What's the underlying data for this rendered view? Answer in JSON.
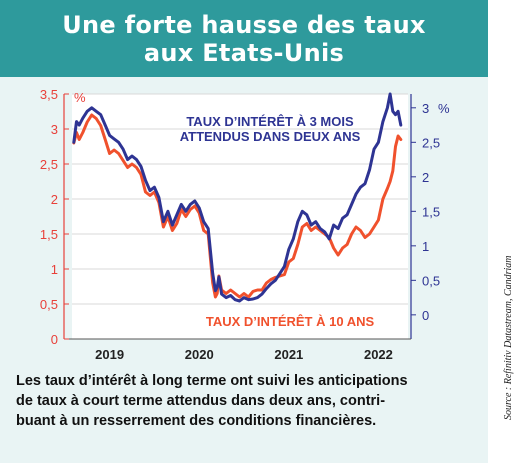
{
  "header": {
    "title_line1": "Une forte hausse des taux",
    "title_line2": "aux Etats-Unis"
  },
  "caption": {
    "line1": "Les taux d’intérêt à long terme ont suivi les anticipations",
    "line2": "de taux à court terme attendus dans deux ans, contri-",
    "line3": "buant à un resserrement des conditions financières."
  },
  "source": "Source : Refinitiv Datastream, Candriam",
  "colors": {
    "frame_bg": "#e9f4f4",
    "title_bg": "#2e9a9c",
    "red_series": "#f0512d",
    "blue_series": "#2e3493",
    "left_axis": "#e8403a",
    "right_axis": "#2e3493"
  },
  "chart_data": {
    "type": "line",
    "left_axis": {
      "unit": "%",
      "ticks": [
        "0",
        "0,5",
        "1",
        "1,5",
        "2",
        "2,5",
        "3",
        "3,5"
      ],
      "ylim": [
        0,
        3.5
      ]
    },
    "right_axis": {
      "unit": "%",
      "ticks": [
        "0",
        "0,5",
        "1",
        "1,5",
        "2",
        "2,5",
        "3"
      ],
      "ylim": [
        -0.35,
        3.2
      ]
    },
    "x_ticks": [
      "2019",
      "2020",
      "2021",
      "2022"
    ],
    "xlim": [
      2018.58,
      2022.33
    ],
    "grid": "horizontal",
    "series": [
      {
        "name": "TAUX D’INTÉRÊT À 10 ANS",
        "axis": "left",
        "color": "#f0512d",
        "x": [
          2018.6,
          2018.63,
          2018.66,
          2018.7,
          2018.75,
          2018.8,
          2018.85,
          2018.9,
          2018.95,
          2019.0,
          2019.05,
          2019.1,
          2019.15,
          2019.2,
          2019.25,
          2019.3,
          2019.35,
          2019.4,
          2019.45,
          2019.5,
          2019.55,
          2019.6,
          2019.65,
          2019.7,
          2019.75,
          2019.8,
          2019.85,
          2019.9,
          2019.95,
          2020.0,
          2020.05,
          2020.1,
          2020.15,
          2020.18,
          2020.2,
          2020.22,
          2020.25,
          2020.3,
          2020.35,
          2020.4,
          2020.45,
          2020.5,
          2020.55,
          2020.6,
          2020.65,
          2020.7,
          2020.75,
          2020.8,
          2020.85,
          2020.9,
          2020.95,
          2021.0,
          2021.05,
          2021.1,
          2021.15,
          2021.2,
          2021.25,
          2021.3,
          2021.35,
          2021.4,
          2021.45,
          2021.5,
          2021.55,
          2021.6,
          2021.65,
          2021.7,
          2021.75,
          2021.8,
          2021.85,
          2021.9,
          2021.95,
          2022.0,
          2022.05,
          2022.1,
          2022.13,
          2022.16,
          2022.19,
          2022.22,
          2022.25
        ],
        "y": [
          2.8,
          2.95,
          2.85,
          2.95,
          3.1,
          3.2,
          3.15,
          3.05,
          2.85,
          2.65,
          2.7,
          2.65,
          2.55,
          2.45,
          2.5,
          2.45,
          2.35,
          2.1,
          2.05,
          2.1,
          1.95,
          1.6,
          1.75,
          1.55,
          1.65,
          1.85,
          1.75,
          1.85,
          1.9,
          1.8,
          1.55,
          1.5,
          0.8,
          0.6,
          0.65,
          0.9,
          0.7,
          0.65,
          0.7,
          0.65,
          0.6,
          0.65,
          0.6,
          0.68,
          0.7,
          0.7,
          0.8,
          0.85,
          0.88,
          0.9,
          0.92,
          1.1,
          1.15,
          1.35,
          1.6,
          1.65,
          1.55,
          1.6,
          1.55,
          1.5,
          1.45,
          1.3,
          1.2,
          1.3,
          1.35,
          1.5,
          1.6,
          1.55,
          1.45,
          1.5,
          1.6,
          1.7,
          2.0,
          2.15,
          2.25,
          2.4,
          2.75,
          2.9,
          2.85
        ]
      },
      {
        "name": "TAUX D’INTÉRÊT À 3 MOIS ATTENDUS DANS DEUX ANS",
        "axis": "right",
        "color": "#2e3493",
        "x": [
          2018.6,
          2018.63,
          2018.66,
          2018.7,
          2018.75,
          2018.8,
          2018.85,
          2018.9,
          2018.95,
          2019.0,
          2019.05,
          2019.1,
          2019.15,
          2019.2,
          2019.25,
          2019.3,
          2019.35,
          2019.4,
          2019.45,
          2019.5,
          2019.55,
          2019.6,
          2019.65,
          2019.7,
          2019.75,
          2019.8,
          2019.85,
          2019.9,
          2019.95,
          2020.0,
          2020.05,
          2020.1,
          2020.15,
          2020.18,
          2020.2,
          2020.22,
          2020.25,
          2020.3,
          2020.35,
          2020.4,
          2020.45,
          2020.5,
          2020.55,
          2020.6,
          2020.65,
          2020.7,
          2020.75,
          2020.8,
          2020.85,
          2020.9,
          2020.95,
          2021.0,
          2021.05,
          2021.1,
          2021.15,
          2021.2,
          2021.25,
          2021.3,
          2021.35,
          2021.4,
          2021.45,
          2021.5,
          2021.55,
          2021.6,
          2021.65,
          2021.7,
          2021.75,
          2021.8,
          2021.85,
          2021.9,
          2021.95,
          2022.0,
          2022.05,
          2022.1,
          2022.13,
          2022.16,
          2022.19,
          2022.22,
          2022.25
        ],
        "y": [
          2.5,
          2.8,
          2.75,
          2.85,
          2.95,
          3.0,
          2.95,
          2.9,
          2.75,
          2.6,
          2.55,
          2.5,
          2.4,
          2.25,
          2.3,
          2.25,
          2.15,
          1.95,
          1.8,
          1.85,
          1.7,
          1.35,
          1.5,
          1.3,
          1.45,
          1.6,
          1.5,
          1.6,
          1.65,
          1.55,
          1.35,
          1.25,
          0.6,
          0.35,
          0.4,
          0.55,
          0.3,
          0.25,
          0.28,
          0.22,
          0.2,
          0.25,
          0.22,
          0.23,
          0.25,
          0.3,
          0.38,
          0.45,
          0.5,
          0.6,
          0.7,
          0.95,
          1.1,
          1.35,
          1.5,
          1.45,
          1.3,
          1.35,
          1.25,
          1.2,
          1.1,
          1.3,
          1.25,
          1.4,
          1.45,
          1.6,
          1.75,
          1.85,
          1.9,
          2.1,
          2.4,
          2.5,
          2.8,
          3.0,
          3.2,
          2.95,
          2.9,
          2.95,
          2.75
        ]
      }
    ]
  }
}
